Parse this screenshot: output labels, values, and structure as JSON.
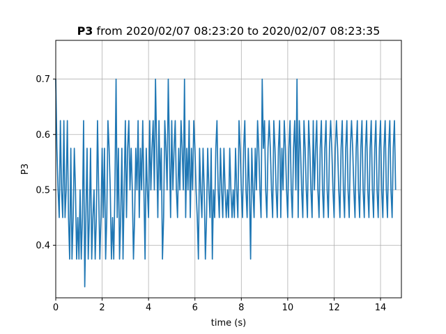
{
  "chart_data": {
    "type": "line",
    "title_bold": "P3",
    "title_rest": " from 2020/02/07 08:23:20 to 2020/02/07 08:23:35",
    "xlabel": "time (s)",
    "ylabel": "P3",
    "xlim": [
      0,
      14.9
    ],
    "ylim": [
      0.305,
      0.77
    ],
    "grid": true,
    "line_color": "#1f77b4",
    "x_ticks": [
      0,
      2,
      4,
      6,
      8,
      10,
      12,
      14
    ],
    "x_tick_labels": [
      "0",
      "2",
      "4",
      "6",
      "8",
      "10",
      "12",
      "14"
    ],
    "y_ticks": [
      0.4,
      0.5,
      0.6,
      0.7
    ],
    "y_tick_labels": [
      "0.4",
      "0.5",
      "0.6",
      "0.7"
    ],
    "series": [
      {
        "x_start": 0,
        "x_step": 0.05,
        "y": [
          0.7,
          0.575,
          0.5,
          0.45,
          0.625,
          0.5,
          0.45,
          0.625,
          0.45,
          0.5,
          0.625,
          0.45,
          0.375,
          0.575,
          0.375,
          0.45,
          0.575,
          0.5,
          0.375,
          0.45,
          0.375,
          0.5,
          0.375,
          0.45,
          0.625,
          0.325,
          0.45,
          0.575,
          0.375,
          0.45,
          0.575,
          0.375,
          0.45,
          0.5,
          0.375,
          0.45,
          0.625,
          0.5,
          0.375,
          0.45,
          0.575,
          0.45,
          0.575,
          0.375,
          0.45,
          0.625,
          0.575,
          0.5,
          0.375,
          0.45,
          0.375,
          0.5,
          0.7,
          0.45,
          0.575,
          0.375,
          0.45,
          0.575,
          0.375,
          0.5,
          0.625,
          0.45,
          0.575,
          0.625,
          0.5,
          0.575,
          0.5,
          0.375,
          0.45,
          0.575,
          0.5,
          0.625,
          0.45,
          0.575,
          0.5,
          0.625,
          0.5,
          0.375,
          0.575,
          0.5,
          0.45,
          0.625,
          0.5,
          0.575,
          0.625,
          0.5,
          0.7,
          0.575,
          0.45,
          0.625,
          0.5,
          0.575,
          0.375,
          0.45,
          0.625,
          0.575,
          0.5,
          0.7,
          0.575,
          0.45,
          0.625,
          0.5,
          0.575,
          0.625,
          0.5,
          0.45,
          0.575,
          0.5,
          0.625,
          0.575,
          0.5,
          0.7,
          0.45,
          0.575,
          0.5,
          0.625,
          0.45,
          0.575,
          0.5,
          0.625,
          0.575,
          0.5,
          0.45,
          0.375,
          0.575,
          0.5,
          0.45,
          0.575,
          0.5,
          0.375,
          0.45,
          0.575,
          0.5,
          0.45,
          0.575,
          0.375,
          0.5,
          0.45,
          0.575,
          0.625,
          0.5,
          0.45,
          0.575,
          0.5,
          0.45,
          0.575,
          0.5,
          0.45,
          0.5,
          0.45,
          0.575,
          0.5,
          0.45,
          0.5,
          0.45,
          0.575,
          0.5,
          0.45,
          0.625,
          0.575,
          0.5,
          0.45,
          0.575,
          0.625,
          0.5,
          0.45,
          0.575,
          0.5,
          0.375,
          0.575,
          0.5,
          0.45,
          0.575,
          0.5,
          0.625,
          0.575,
          0.5,
          0.45,
          0.7,
          0.575,
          0.625,
          0.5,
          0.45,
          0.575,
          0.625,
          0.575,
          0.5,
          0.45,
          0.625,
          0.575,
          0.5,
          0.45,
          0.575,
          0.625,
          0.45,
          0.575,
          0.5,
          0.625,
          0.575,
          0.5,
          0.45,
          0.575,
          0.625,
          0.5,
          0.45,
          0.575,
          0.625,
          0.5,
          0.7,
          0.45,
          0.625,
          0.575,
          0.5,
          0.45,
          0.625,
          0.575,
          0.5,
          0.45,
          0.625,
          0.575,
          0.5,
          0.45,
          0.625,
          0.5,
          0.575,
          0.625,
          0.5,
          0.45,
          0.575,
          0.625,
          0.5,
          0.45,
          0.575,
          0.625,
          0.5,
          0.45,
          0.575,
          0.625,
          0.575,
          0.5,
          0.45,
          0.575,
          0.625,
          0.575,
          0.5,
          0.45,
          0.575,
          0.625,
          0.5,
          0.45,
          0.575,
          0.625,
          0.5,
          0.45,
          0.575,
          0.625,
          0.575,
          0.5,
          0.45,
          0.575,
          0.625,
          0.5,
          0.45,
          0.575,
          0.625,
          0.5,
          0.45,
          0.575,
          0.625,
          0.5,
          0.45,
          0.575,
          0.625,
          0.5,
          0.45,
          0.575,
          0.625,
          0.5,
          0.45,
          0.575,
          0.625,
          0.5,
          0.45,
          0.575,
          0.625,
          0.5,
          0.45,
          0.575,
          0.625,
          0.5,
          0.45,
          0.575,
          0.625,
          0.5
        ]
      }
    ]
  }
}
